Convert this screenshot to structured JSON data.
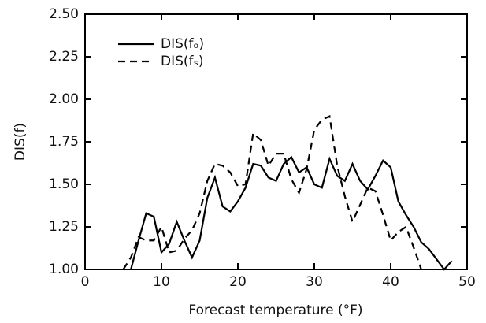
{
  "chart_data": {
    "type": "line",
    "x_label": "Forecast temperature (°F)",
    "y_label": "DIS(f)",
    "xlim": [
      0,
      50
    ],
    "xticks": [
      0,
      10,
      20,
      30,
      40,
      50
    ],
    "ylim": [
      1,
      2.5
    ],
    "yticks": [
      {
        "value": 1,
        "label": "1.00"
      },
      1.25,
      {
        "value": 1.5,
        "label": "1.50"
      },
      1.75,
      {
        "value": 2,
        "label": "2.00"
      },
      2.25,
      {
        "value": 2.5,
        "label": "2.50"
      }
    ],
    "legend": "upper left",
    "series": [
      {
        "name": "DIS(fₒ)",
        "color": "#000000",
        "line_style": "solid",
        "x": [
          6,
          7,
          8,
          9,
          10,
          11,
          12,
          13,
          14,
          15,
          16,
          17,
          18,
          19,
          20,
          21,
          22,
          23,
          24,
          25,
          26,
          27,
          28,
          29,
          30,
          31,
          32,
          33,
          34,
          35,
          36,
          37,
          38,
          39,
          40,
          41,
          42,
          43,
          44,
          45,
          46,
          47,
          48
        ],
        "values": [
          1.0,
          1.17,
          1.33,
          1.31,
          1.1,
          1.15,
          1.28,
          1.17,
          1.07,
          1.17,
          1.42,
          1.54,
          1.37,
          1.34,
          1.4,
          1.48,
          1.62,
          1.61,
          1.54,
          1.52,
          1.62,
          1.66,
          1.57,
          1.6,
          1.5,
          1.48,
          1.65,
          1.55,
          1.52,
          1.62,
          1.52,
          1.47,
          1.55,
          1.64,
          1.6,
          1.4,
          1.32,
          1.25,
          1.16,
          1.12,
          1.06,
          1.0,
          1.05
        ]
      },
      {
        "name": "DIS(fₛ)",
        "color": "#000000",
        "line_style": "dashed",
        "x": [
          5,
          6,
          7,
          8,
          9,
          10,
          11,
          12,
          13,
          14,
          15,
          16,
          17,
          18,
          19,
          20,
          21,
          22,
          23,
          24,
          25,
          26,
          27,
          28,
          29,
          30,
          31,
          32,
          33,
          34,
          35,
          36,
          37,
          38,
          39,
          40,
          41,
          42,
          43,
          44
        ],
        "values": [
          1.0,
          1.07,
          1.19,
          1.17,
          1.17,
          1.25,
          1.1,
          1.11,
          1.18,
          1.23,
          1.33,
          1.52,
          1.62,
          1.61,
          1.57,
          1.49,
          1.5,
          1.8,
          1.76,
          1.61,
          1.68,
          1.68,
          1.53,
          1.45,
          1.59,
          1.82,
          1.88,
          1.9,
          1.61,
          1.43,
          1.28,
          1.38,
          1.48,
          1.46,
          1.32,
          1.17,
          1.22,
          1.25,
          1.13,
          1.0
        ]
      }
    ]
  }
}
